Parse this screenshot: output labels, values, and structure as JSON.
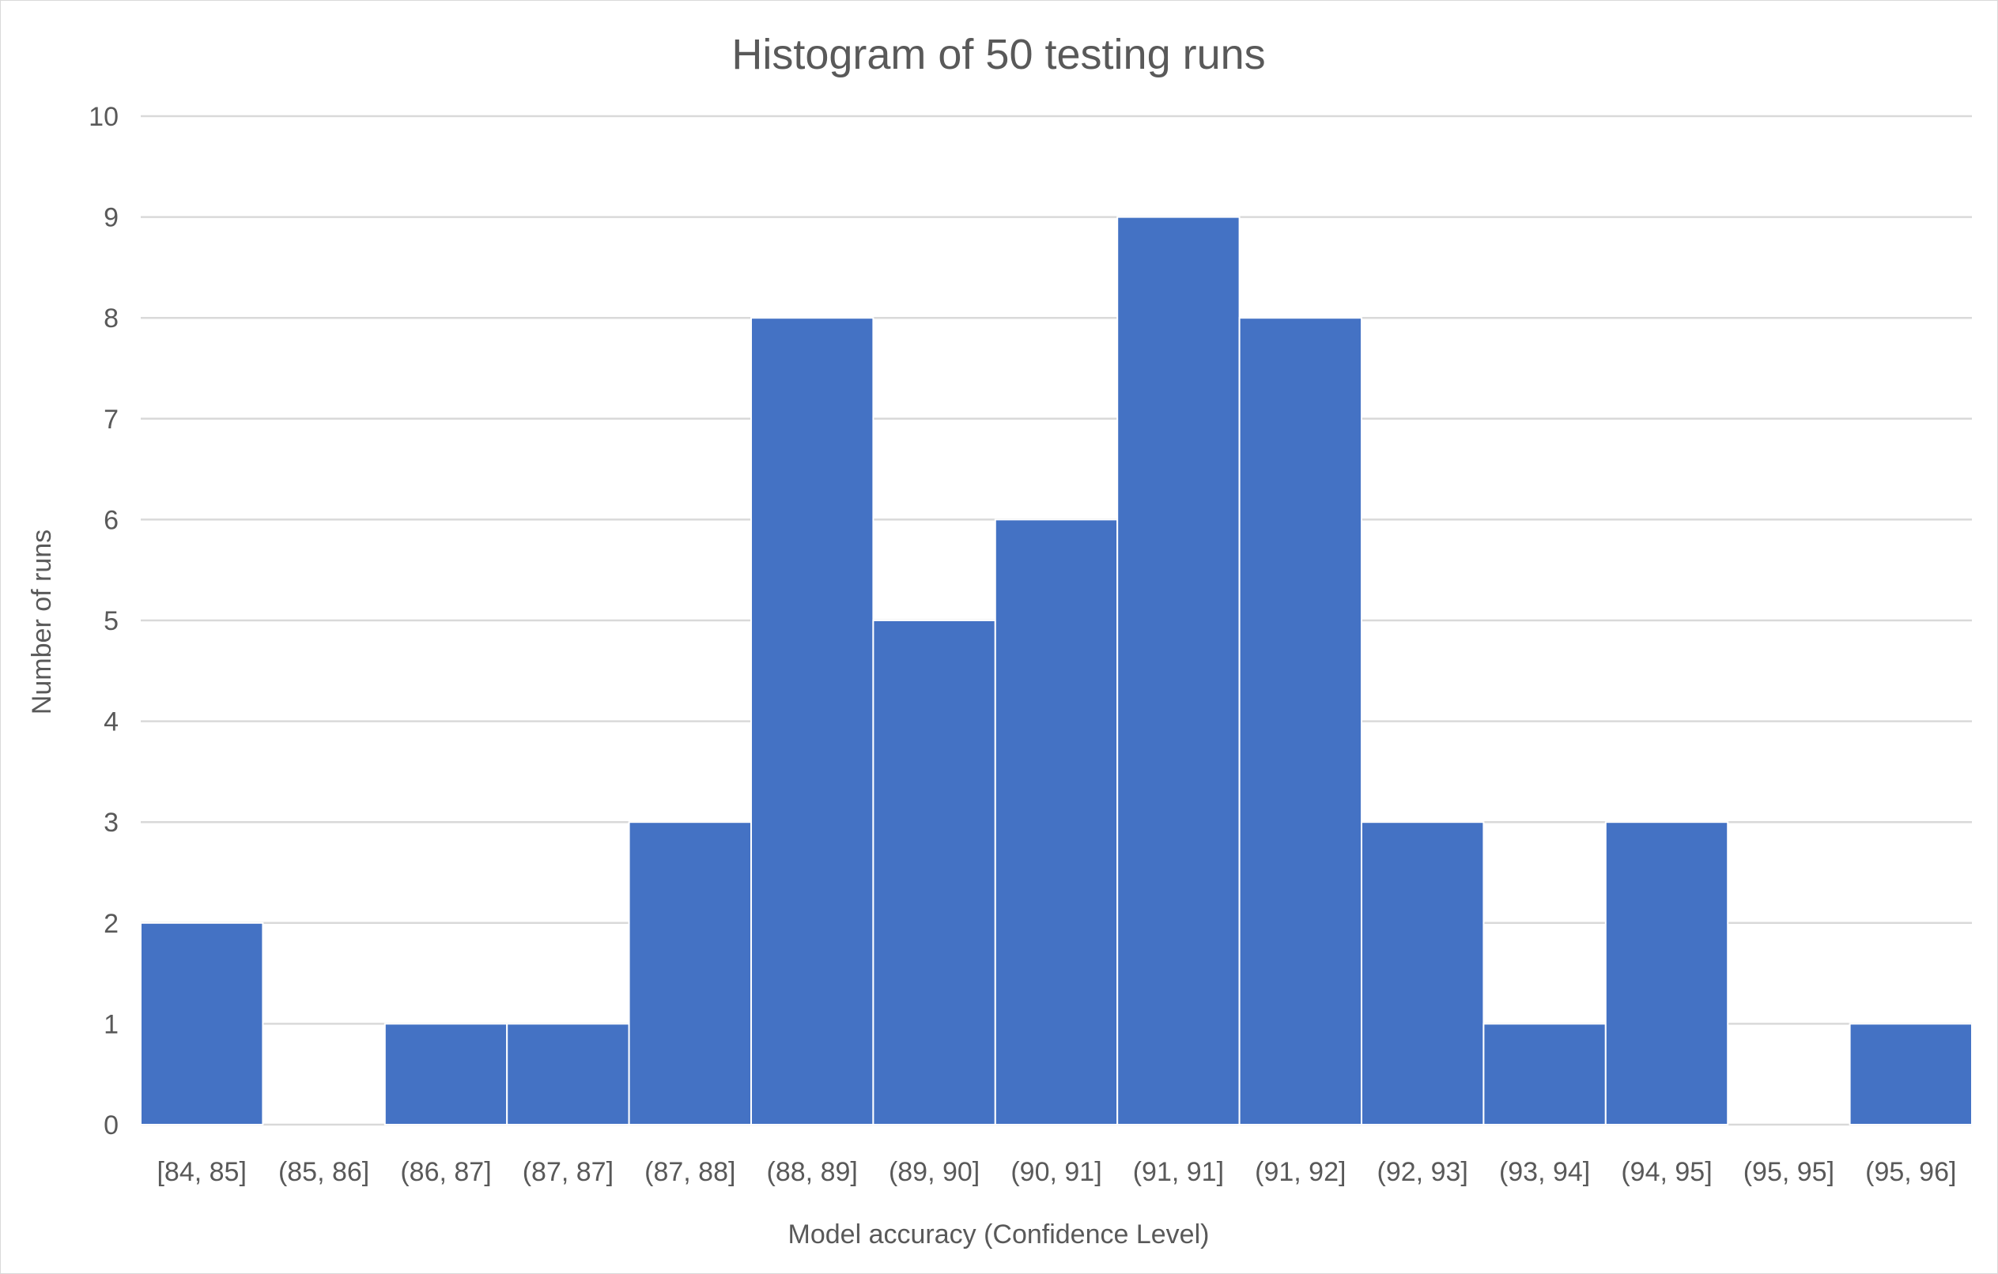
{
  "chart_data": {
    "type": "bar",
    "title": "Histogram of 50 testing runs",
    "xlabel": "Model accuracy (Confidence Level)",
    "ylabel": "Number of runs",
    "categories": [
      "[84, 85]",
      "(85, 86]",
      "(86, 87]",
      "(87, 87]",
      "(87, 88]",
      "(88, 89]",
      "(89, 90]",
      "(90, 91]",
      "(91, 91]",
      "(91, 92]",
      "(92, 93]",
      "(93, 94]",
      "(94, 95]",
      "(95, 95]",
      "(95, 96]"
    ],
    "values": [
      2,
      0,
      1,
      1,
      3,
      8,
      5,
      6,
      9,
      8,
      3,
      1,
      3,
      0,
      1
    ],
    "ylim": [
      0,
      10
    ],
    "yticks": [
      0,
      1,
      2,
      3,
      4,
      5,
      6,
      7,
      8,
      9,
      10
    ],
    "grid": true,
    "legend": "none",
    "bar_color": "#4472c4"
  }
}
